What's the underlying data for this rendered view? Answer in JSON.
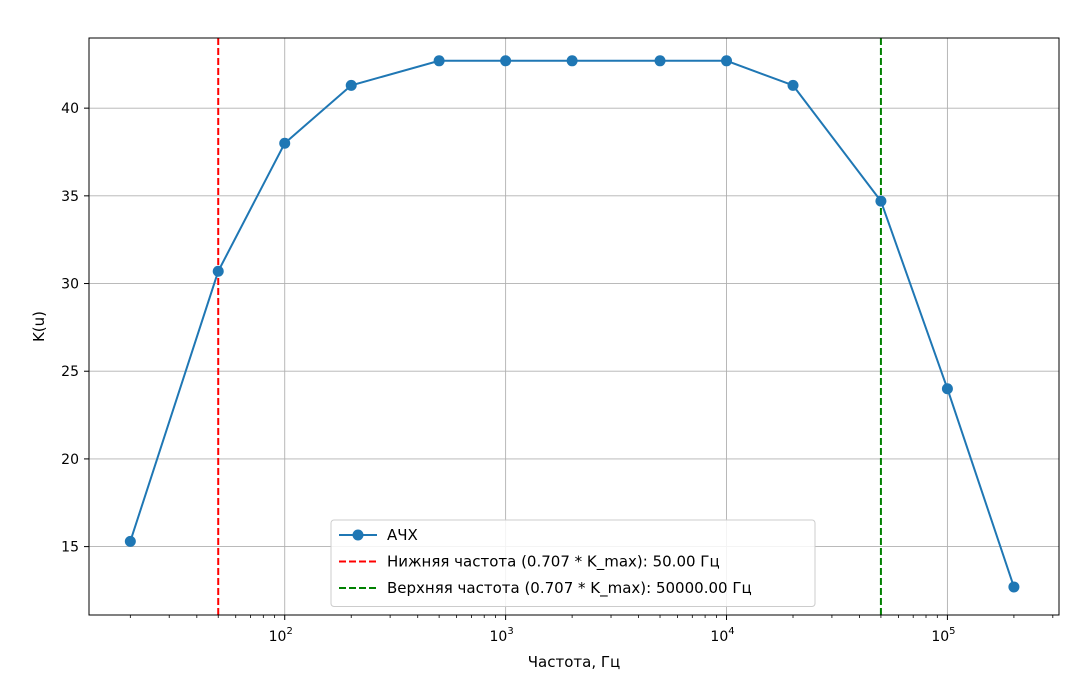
{
  "chart_data": {
    "type": "line",
    "title": "",
    "xlabel": "Частота, Гц",
    "ylabel": "K(u)",
    "xscale": "log",
    "xlim": [
      13,
      320000
    ],
    "ylim": [
      11.1,
      44.0
    ],
    "grid": true,
    "legend_position": "lower center",
    "x_ticks": [
      {
        "value": 100,
        "base": "10",
        "exp": "2"
      },
      {
        "value": 1000,
        "base": "10",
        "exp": "3"
      },
      {
        "value": 10000,
        "base": "10",
        "exp": "4"
      },
      {
        "value": 100000,
        "base": "10",
        "exp": "5"
      }
    ],
    "y_ticks": [
      15,
      20,
      25,
      30,
      35,
      40
    ],
    "series": [
      {
        "name": "АЧХ",
        "color": "#1f77b4",
        "marker": "circle",
        "x": [
          20,
          50,
          100,
          200,
          500,
          1000,
          2000,
          5000,
          10000,
          20000,
          50000,
          100000,
          200000
        ],
        "y": [
          15.3,
          30.7,
          38.0,
          41.3,
          42.7,
          42.7,
          42.7,
          42.7,
          42.7,
          41.3,
          34.7,
          24.0,
          12.7
        ]
      }
    ],
    "vlines": [
      {
        "name": "Нижняя частота (0.707 * K_max): 50.00 Гц",
        "x": 50,
        "color": "#ff0000",
        "style": "dashed"
      },
      {
        "name": "Верхняя частота (0.707 * K_max): 50000.00 Гц",
        "x": 50000,
        "color": "#008000",
        "style": "dashed"
      }
    ]
  }
}
